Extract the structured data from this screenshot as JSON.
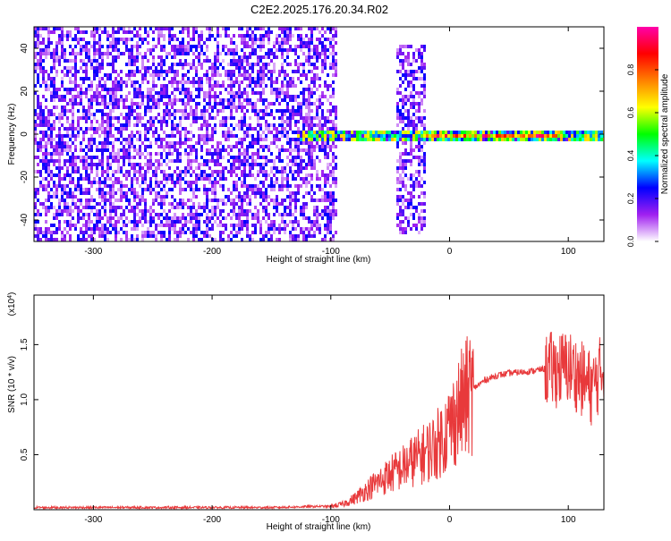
{
  "title": "C2E2.2025.176.20.34.R02",
  "colors": {
    "snr_line": "#e8393b",
    "spec_purple": "#6a1ed8",
    "ridge_red": "#e8282a"
  },
  "chart_data": [
    {
      "type": "heatmap",
      "title": "C2E2.2025.176.20.34.R02",
      "xlabel": "Height of straight line (km)",
      "ylabel": "Frequency (Hz)",
      "xlim": [
        -350,
        130
      ],
      "ylim": [
        -50,
        50
      ],
      "xticks": [
        -300,
        -200,
        -100,
        0,
        100
      ],
      "xtick_labels": [
        "-300",
        "-200",
        "-100",
        "0",
        "100"
      ],
      "yticks": [
        -40,
        -20,
        0,
        20,
        40
      ],
      "ytick_labels": [
        "-40",
        "-20",
        "0",
        "20",
        "40"
      ],
      "colorbar": {
        "label": "Normalized spectral amplitude",
        "range": [
          0,
          1
        ],
        "ticks": [
          0.0,
          0.2,
          0.4,
          0.6,
          0.8
        ],
        "tick_labels": [
          "0.0",
          "0.2",
          "0.4",
          "0.6",
          "0.8"
        ],
        "colormap": [
          "#ffffff",
          "#a020f0",
          "#0000ff",
          "#00ffff",
          "#00ff00",
          "#ffff00",
          "#ff8000",
          "#ff0000",
          "#ff00aa"
        ]
      },
      "regions": [
        {
          "x": [
            -350,
            -95
          ],
          "y": [
            -50,
            50
          ],
          "level": 0.15
        },
        {
          "x": [
            -45,
            -20
          ],
          "y": [
            -45,
            42
          ],
          "level": 0.15
        },
        {
          "x": [
            -130,
            130
          ],
          "y": [
            -2,
            3
          ],
          "level": 0.5
        },
        {
          "x": [
            -20,
            90
          ],
          "y": [
            -1,
            1
          ],
          "level": 0.85
        }
      ]
    },
    {
      "type": "line",
      "xlabel": "Height of straight line (km)",
      "ylabel": "SNR (10 * v/v)",
      "yscale_label": "(x10",
      "yscale_exp": "4",
      "yscale_close": ")",
      "xlim": [
        -350,
        130
      ],
      "ylim": [
        0,
        1.95
      ],
      "xticks": [
        -300,
        -200,
        -100,
        0,
        100
      ],
      "xtick_labels": [
        "-300",
        "-200",
        "-100",
        "0",
        "100"
      ],
      "yticks": [
        0.5,
        1.0,
        1.5
      ],
      "ytick_labels": [
        "0.5",
        "1.0",
        "1.5"
      ],
      "series": [
        {
          "x": [
            -350,
            -200,
            -150,
            -110,
            -100,
            -90,
            -80,
            -70,
            -60,
            -50,
            -40,
            -30,
            -20,
            -10,
            0,
            10,
            20,
            30,
            40,
            50,
            60,
            70,
            80,
            90,
            100,
            110,
            120,
            125,
            130
          ],
          "values": [
            0.02,
            0.02,
            0.02,
            0.03,
            0.03,
            0.05,
            0.1,
            0.18,
            0.25,
            0.32,
            0.38,
            0.45,
            0.52,
            0.6,
            0.75,
            0.95,
            1.1,
            1.18,
            1.22,
            1.24,
            1.25,
            1.26,
            1.28,
            1.27,
            1.3,
            1.2,
            1.1,
            1.2,
            1.3
          ]
        }
      ]
    }
  ]
}
